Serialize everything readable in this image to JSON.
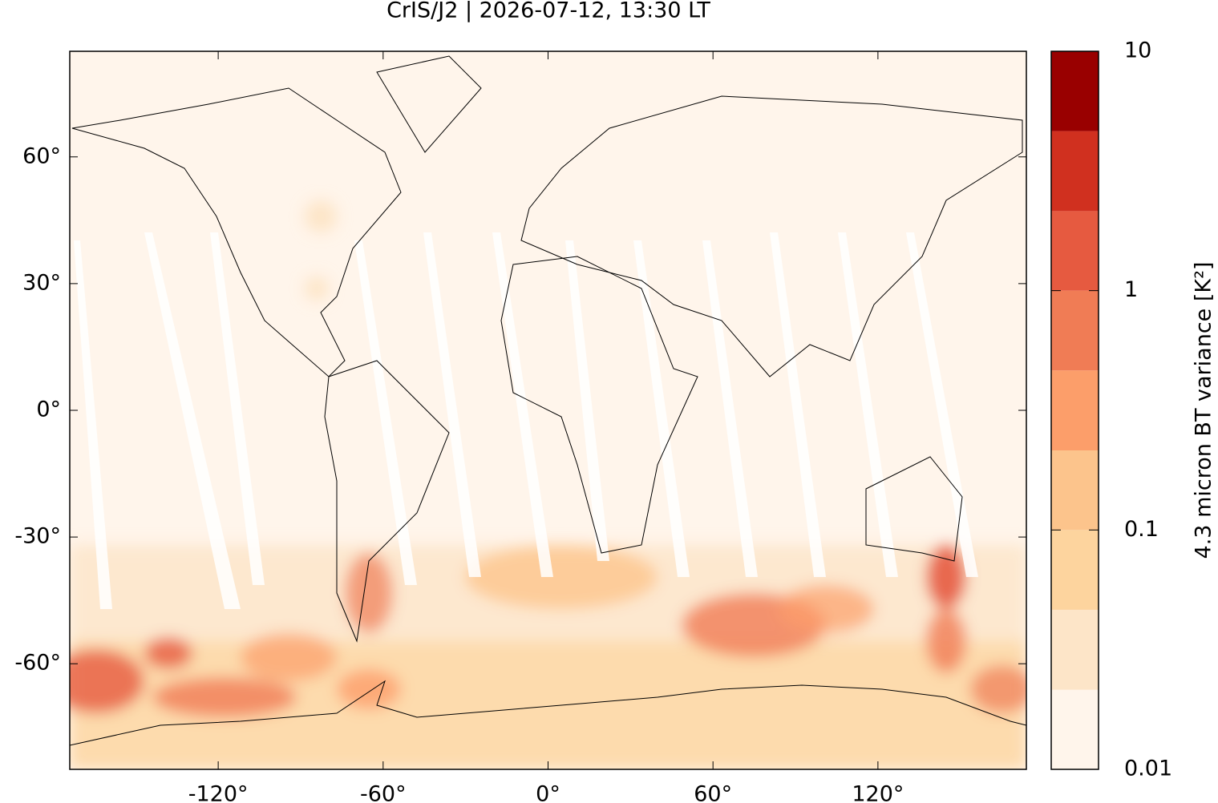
{
  "chart_data": {
    "type": "map",
    "title": "CrIS/J2 | 2026-07-12, 13:30 LT",
    "xlim": [
      -174,
      174
    ],
    "ylim": [
      -85,
      85
    ],
    "xticks": [
      {
        "value": -120,
        "label": "-120°"
      },
      {
        "value": -60,
        "label": "-60°"
      },
      {
        "value": 0,
        "label": "0°"
      },
      {
        "value": 60,
        "label": "60°"
      },
      {
        "value": 120,
        "label": "120°"
      }
    ],
    "yticks": [
      {
        "value": -60,
        "label": "-60°"
      },
      {
        "value": -30,
        "label": "-30°"
      },
      {
        "value": 0,
        "label": "0°"
      },
      {
        "value": 30,
        "label": "30°"
      },
      {
        "value": 60,
        "label": "60°"
      }
    ],
    "colorbar": {
      "label": "4.3 micron BT variance [K²]",
      "scale": "log",
      "lim": [
        0.01,
        10
      ],
      "ticks": [
        0.01,
        0.1,
        1,
        10
      ],
      "levels": [
        0.01,
        0.0215,
        0.0464,
        0.1,
        0.215,
        0.464,
        1,
        2.15,
        4.64,
        10
      ],
      "colors": [
        "#fff5eb",
        "#fde5c8",
        "#fdd49e",
        "#fcc48c",
        "#fc9e6a",
        "#f07c55",
        "#e65a40",
        "#d0301f",
        "#990000"
      ]
    }
  }
}
